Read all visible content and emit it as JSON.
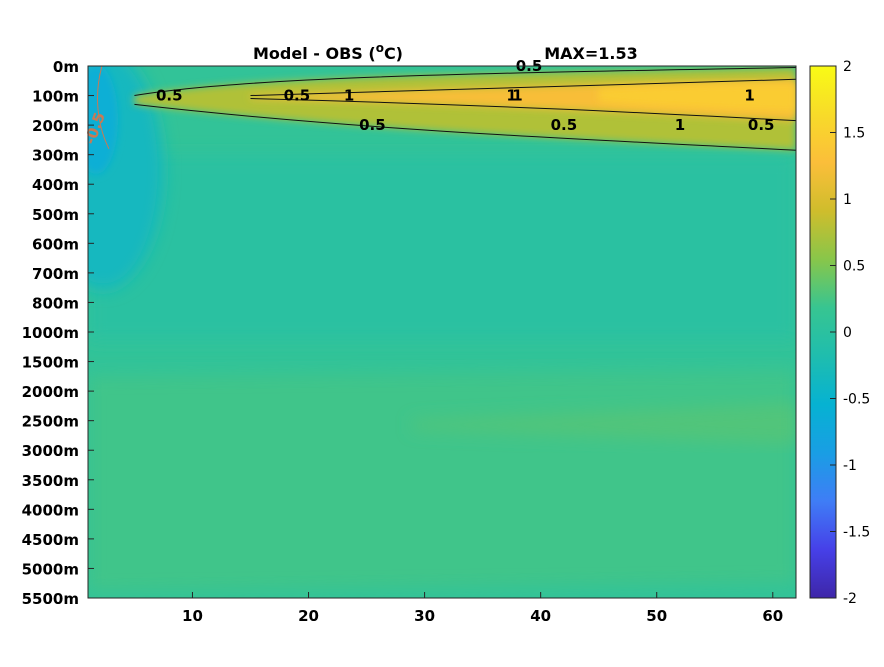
{
  "chart_data": {
    "type": "heatmap",
    "title": "Model - OBS (",
    "title_unit_sup": "o",
    "title_unit_tail": "C)",
    "max_label": "MAX=1.53",
    "x": {
      "ticks": [
        10,
        20,
        30,
        40,
        50,
        60
      ],
      "range": [
        1,
        62
      ]
    },
    "y": {
      "depth_labels": [
        "0m",
        "100m",
        "200m",
        "300m",
        "400m",
        "500m",
        "600m",
        "700m",
        "800m",
        "1000m",
        "1500m",
        "2000m",
        "2500m",
        "3000m",
        "3500m",
        "4000m",
        "4500m",
        "5000m",
        "5500m"
      ]
    },
    "colorbar": {
      "ticks": [
        "2",
        "1.5",
        "1",
        "0.5",
        "0",
        "-0.5",
        "-1",
        "-1.5",
        "-2"
      ],
      "range": [
        -2,
        2
      ],
      "colormap": [
        "#3e26a8",
        "#4640e8",
        "#3f7df6",
        "#199ee4",
        "#06b2d2",
        "#1fbdae",
        "#37c591",
        "#88c64a",
        "#cfbd2c",
        "#fbbe3a",
        "#f8db29",
        "#f9fb15"
      ]
    },
    "contour_labels": [
      {
        "text": "0.5",
        "x": 19.0,
        "depth": "100m"
      },
      {
        "text": "0.5",
        "x": 39.0,
        "depth": "0m"
      },
      {
        "text": "0.5",
        "x": 8.0,
        "depth": "100m"
      },
      {
        "text": "1",
        "x": 23.5,
        "depth": "100m"
      },
      {
        "text": "1",
        "x": 37.5,
        "depth": "100m"
      },
      {
        "text": "1",
        "x": 38.0,
        "depth": "100m"
      },
      {
        "text": "1",
        "x": 58.0,
        "depth": "100m"
      },
      {
        "text": "1",
        "x": 52.0,
        "depth": "200m"
      },
      {
        "text": "0.5",
        "x": 25.5,
        "depth": "200m"
      },
      {
        "text": "0.5",
        "x": 42.0,
        "depth": "200m"
      },
      {
        "text": "0.5",
        "x": 59.0,
        "depth": "200m"
      },
      {
        "text": "-0.5",
        "x": 2.0,
        "depth": "200m"
      }
    ]
  }
}
